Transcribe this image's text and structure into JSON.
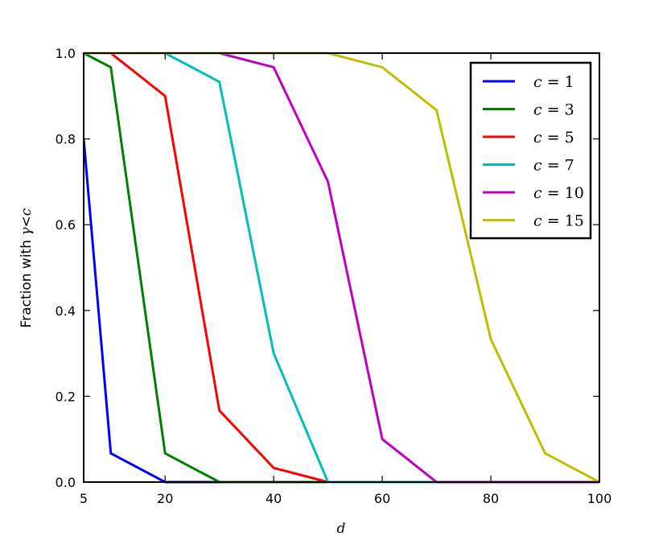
{
  "chart_data": {
    "type": "line",
    "xlabel": "d",
    "ylabel_prefix": "Fraction with ",
    "ylabel_math": "γ<c",
    "xlim": [
      5,
      100
    ],
    "ylim": [
      0,
      1.0
    ],
    "xticks": [
      5,
      20,
      40,
      60,
      80,
      100
    ],
    "xtick_labels": [
      "5",
      "20",
      "40",
      "60",
      "80",
      "100"
    ],
    "yticks": [
      0.0,
      0.2,
      0.4,
      0.6,
      0.8,
      1.0
    ],
    "ytick_labels": [
      "0.0",
      "0.2",
      "0.4",
      "0.6",
      "0.8",
      "1.0"
    ],
    "grid": false,
    "legend_position": "top-right",
    "series": [
      {
        "name": "c = 1",
        "color": "#0000ff",
        "x": [
          5,
          10,
          20,
          30,
          40,
          50,
          60,
          70,
          80,
          90,
          100
        ],
        "y": [
          0.8,
          0.067,
          0.0,
          0.0,
          0.0,
          0.0,
          0.0,
          0.0,
          0.0,
          0.0,
          0.0
        ]
      },
      {
        "name": "c = 3",
        "color": "#008000",
        "x": [
          5,
          10,
          20,
          30,
          40,
          50,
          60,
          70,
          80,
          90,
          100
        ],
        "y": [
          1.0,
          0.967,
          0.067,
          0.0,
          0.0,
          0.0,
          0.0,
          0.0,
          0.0,
          0.0,
          0.0
        ]
      },
      {
        "name": "c = 5",
        "color": "#ff0000",
        "x": [
          5,
          10,
          20,
          30,
          40,
          50,
          60,
          70,
          80,
          90,
          100
        ],
        "y": [
          1.0,
          1.0,
          0.9,
          0.167,
          0.033,
          0.0,
          0.0,
          0.0,
          0.0,
          0.0,
          0.0
        ]
      },
      {
        "name": "c = 7",
        "color": "#00bfbf",
        "x": [
          5,
          10,
          20,
          30,
          40,
          50,
          60,
          70,
          80,
          90,
          100
        ],
        "y": [
          1.0,
          1.0,
          1.0,
          0.933,
          0.3,
          0.0,
          0.0,
          0.0,
          0.0,
          0.0,
          0.0
        ]
      },
      {
        "name": "c = 10",
        "color": "#bf00bf",
        "x": [
          5,
          10,
          20,
          30,
          40,
          50,
          60,
          70,
          80,
          90,
          100
        ],
        "y": [
          1.0,
          1.0,
          1.0,
          1.0,
          0.967,
          0.7,
          0.1,
          0.0,
          0.0,
          0.0,
          0.0
        ]
      },
      {
        "name": "c = 15",
        "color": "#bfbf00",
        "x": [
          5,
          10,
          20,
          30,
          40,
          50,
          60,
          70,
          80,
          90,
          100
        ],
        "y": [
          1.0,
          1.0,
          1.0,
          1.0,
          1.0,
          1.0,
          0.967,
          0.867,
          0.333,
          0.067,
          0.0
        ]
      }
    ]
  }
}
